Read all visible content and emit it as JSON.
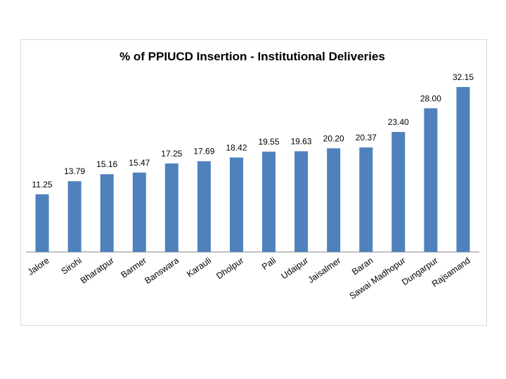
{
  "chart_data": {
    "type": "bar",
    "title": "% of PPIUCD Insertion - Institutional Deliveries",
    "categories": [
      "Jalore",
      "Sirohi",
      "Bharatpur",
      "Barmer",
      "Banswara",
      "Karauli",
      "Dholpur",
      "Pali",
      "Udaipur",
      "Jaisalmer",
      "Baran",
      "Sawai Madhopur",
      "Dungarpur",
      "Rajsamand"
    ],
    "values": [
      11.25,
      13.79,
      15.16,
      15.47,
      17.25,
      17.69,
      18.42,
      19.55,
      19.63,
      20.2,
      20.37,
      23.4,
      28.0,
      32.15
    ],
    "value_labels": [
      "11.25",
      "13.79",
      "15.16",
      "15.47",
      "17.25",
      "17.69",
      "18.42",
      "19.55",
      "19.63",
      "20.20",
      "20.37",
      "23.40",
      "28.00",
      "32.15"
    ],
    "xlabel": "",
    "ylabel": "",
    "ylim": [
      0,
      32.15
    ],
    "grid": false,
    "legend": "none",
    "bar_color": "#4f81bd"
  }
}
